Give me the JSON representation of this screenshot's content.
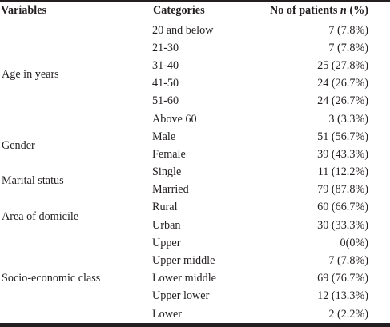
{
  "table": {
    "headers": {
      "variables": "Variables",
      "categories": "Categories",
      "count_prefix": "No of patients ",
      "count_n": "n",
      "count_suffix": " (%)"
    },
    "groups": [
      {
        "variable": "Age in years",
        "rows": [
          {
            "category": "20 and below",
            "count": "7 (7.8%)"
          },
          {
            "category": "21-30",
            "count": "7 (7.8%)"
          },
          {
            "category": "31-40",
            "count": "25 (27.8%)"
          },
          {
            "category": "41-50",
            "count": "24 (26.7%)"
          },
          {
            "category": "51-60",
            "count": "24 (26.7%)"
          },
          {
            "category": "Above 60",
            "count": "3 (3.3%)"
          }
        ]
      },
      {
        "variable": "Gender",
        "rows": [
          {
            "category": "Male",
            "count": "51 (56.7%)"
          },
          {
            "category": "Female",
            "count": "39 (43.3%)"
          }
        ]
      },
      {
        "variable": "Marital status",
        "rows": [
          {
            "category": "Single",
            "count": "11 (12.2%)"
          },
          {
            "category": "Married",
            "count": "79 (87.8%)"
          }
        ]
      },
      {
        "variable": "Area of domicile",
        "rows": [
          {
            "category": "Rural",
            "count": "60 (66.7%)"
          },
          {
            "category": "Urban",
            "count": "30 (33.3%)"
          }
        ]
      },
      {
        "variable": "Socio-economic class",
        "rows": [
          {
            "category": "Upper",
            "count": "0(0%)"
          },
          {
            "category": "Upper middle",
            "count": "7 (7.8%)"
          },
          {
            "category": "Lower middle",
            "count": "69 (76.7%)"
          },
          {
            "category": "Upper lower",
            "count": "12 (13.3%)"
          },
          {
            "category": "Lower",
            "count": "2 (2.2%)"
          }
        ]
      }
    ]
  }
}
